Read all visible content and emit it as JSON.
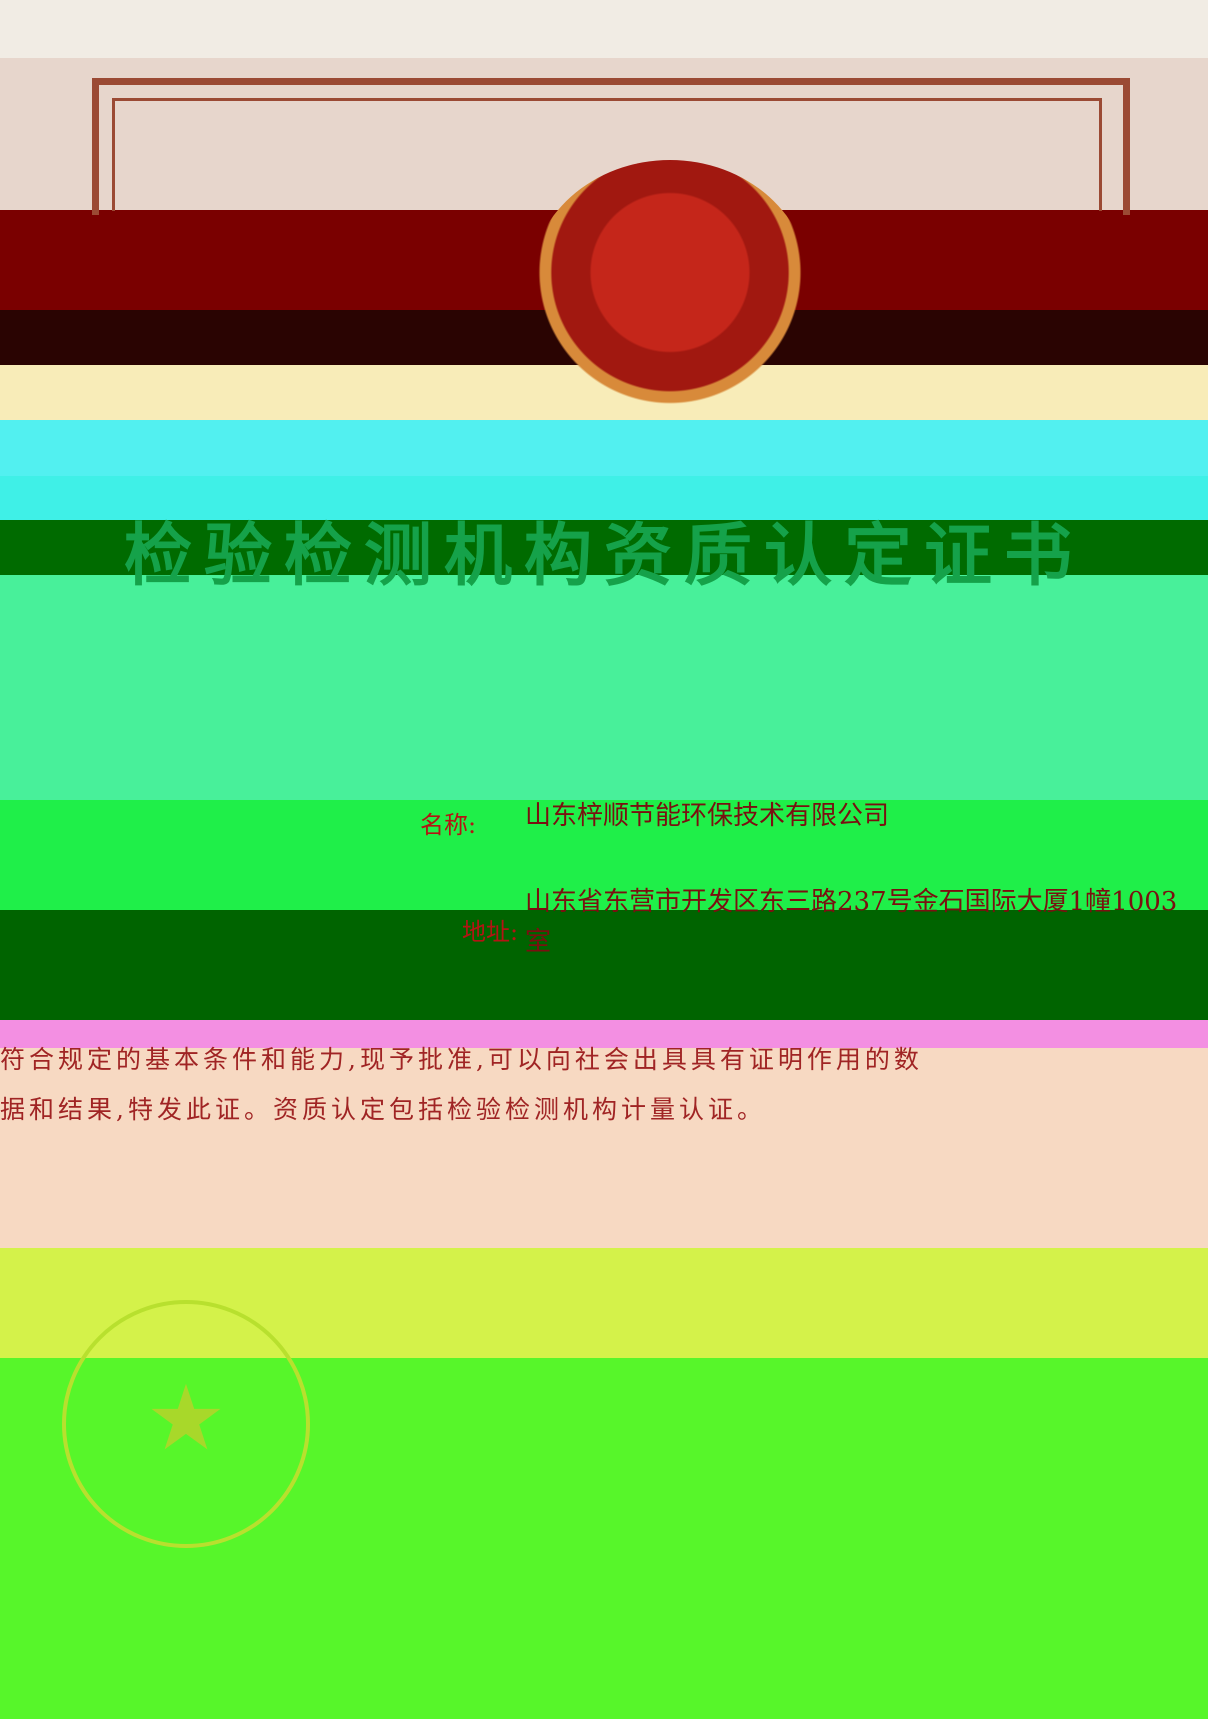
{
  "certificate": {
    "title": "检验检测机构资质认定证书",
    "name_label": "名称:",
    "name_value": "山东梓顺节能环保技术有限公司",
    "address_label": "地址:",
    "address_value": "山东省东营市开发区东三路237号金石国际大厦1幢1003室",
    "body_line_1": "符合规定的基本条件和能力,现予批准,可以向社会出具具有证明作用的数",
    "body_line_2": "据和结果,特发此证。资质认定包括检验检测机构计量认证。"
  },
  "colors": {
    "emblem_red": "#c5261a",
    "title_color": "#15a24a",
    "text_red": "#b41414"
  },
  "icons": {
    "emblem": "national-emblem-icon",
    "seal": "official-seal-icon"
  }
}
